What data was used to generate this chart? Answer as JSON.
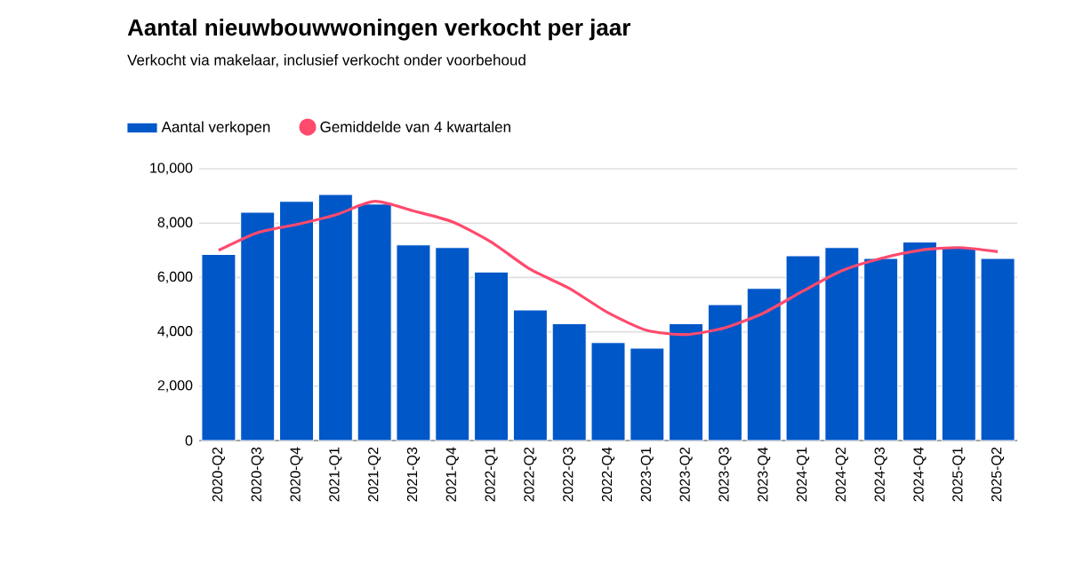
{
  "chart_data": {
    "type": "bar",
    "title": "Aantal nieuwbouwwoningen verkocht per jaar",
    "subtitle": "Verkocht via makelaar, inclusief verkocht onder voorbehoud",
    "categories": [
      "2020-Q2",
      "2020-Q3",
      "2020-Q4",
      "2021-Q1",
      "2021-Q2",
      "2021-Q3",
      "2021-Q4",
      "2022-Q1",
      "2022-Q2",
      "2022-Q3",
      "2022-Q4",
      "2023-Q1",
      "2023-Q2",
      "2023-Q3",
      "2023-Q4",
      "2024-Q1",
      "2024-Q2",
      "2024-Q3",
      "2024-Q4",
      "2025-Q1",
      "2025-Q2"
    ],
    "series": [
      {
        "name": "Aantal verkopen",
        "type": "bar",
        "color": "#0057c8",
        "values": [
          6850,
          8400,
          8800,
          9050,
          8700,
          7200,
          7100,
          6200,
          4800,
          4300,
          3600,
          3400,
          4300,
          5000,
          5600,
          6800,
          7100,
          6700,
          7300,
          7100,
          6700
        ]
      },
      {
        "name": "Gemiddelde van 4 kwartalen",
        "type": "line",
        "color": "#ff4a6e",
        "values": [
          7000,
          7650,
          7950,
          8300,
          8800,
          8450,
          8050,
          7300,
          6300,
          5600,
          4700,
          4050,
          3900,
          4150,
          4700,
          5500,
          6250,
          6700,
          7000,
          7100,
          6950
        ]
      }
    ],
    "ylim": [
      0,
      10000
    ],
    "yticks": [
      {
        "value": 0,
        "label": "0"
      },
      {
        "value": 2000,
        "label": "2,000"
      },
      {
        "value": 4000,
        "label": "4,000"
      },
      {
        "value": 6000,
        "label": "6,000"
      },
      {
        "value": 8000,
        "label": "8,000"
      },
      {
        "value": 10000,
        "label": "10,000"
      }
    ],
    "grid": "y",
    "legend": "top left"
  }
}
